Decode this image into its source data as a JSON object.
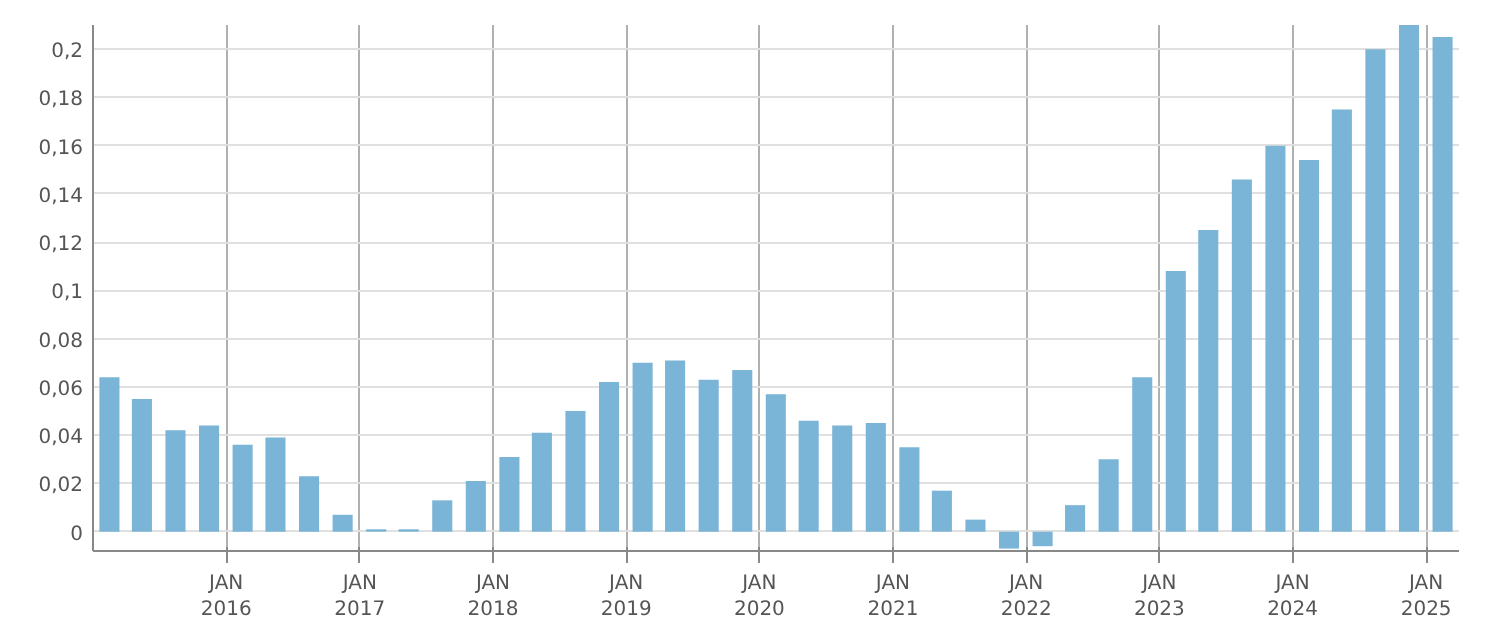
{
  "chart_data": {
    "type": "bar",
    "x": [
      "2015-02-15",
      "2015-05-15",
      "2015-08-15",
      "2015-11-15",
      "2016-02-15",
      "2016-05-15",
      "2016-08-15",
      "2016-11-15",
      "2017-02-15",
      "2017-05-15",
      "2017-08-15",
      "2017-11-15",
      "2018-02-15",
      "2018-05-15",
      "2018-08-15",
      "2018-11-15",
      "2019-02-15",
      "2019-05-15",
      "2019-08-15",
      "2019-11-15",
      "2020-02-15",
      "2020-05-15",
      "2020-08-15",
      "2020-11-15",
      "2021-02-15",
      "2021-05-15",
      "2021-08-15",
      "2021-11-15",
      "2022-02-15",
      "2022-05-15",
      "2022-08-15",
      "2022-11-15",
      "2023-02-15",
      "2023-05-15",
      "2023-08-15",
      "2023-11-15",
      "2024-02-15",
      "2024-05-15",
      "2024-08-15",
      "2024-11-15",
      "2025-02-15"
    ],
    "values": [
      0.064,
      0.055,
      0.042,
      0.044,
      0.036,
      0.039,
      0.023,
      0.007,
      0.001,
      0.001,
      0.013,
      0.021,
      0.031,
      0.041,
      0.05,
      0.062,
      0.07,
      0.071,
      0.063,
      0.067,
      0.057,
      0.046,
      0.044,
      0.045,
      0.035,
      0.017,
      0.005,
      -0.007,
      -0.006,
      0.011,
      0.03,
      0.064,
      0.108,
      0.125,
      0.146,
      0.16,
      0.154,
      0.175,
      0.2,
      0.21,
      0.205
    ],
    "color": "#7ab4d6",
    "xlim": [
      "2015-01-01",
      "2025-04-01"
    ],
    "xticks": [
      {
        "value": "2016-01-01",
        "label": "JAN\n2016"
      },
      {
        "value": "2017-01-01",
        "label": "JAN\n2017"
      },
      {
        "value": "2018-01-01",
        "label": "JAN\n2018"
      },
      {
        "value": "2019-01-01",
        "label": "JAN\n2019"
      },
      {
        "value": "2020-01-01",
        "label": "JAN\n2020"
      },
      {
        "value": "2021-01-01",
        "label": "JAN\n2021"
      },
      {
        "value": "2022-01-01",
        "label": "JAN\n2022"
      },
      {
        "value": "2023-01-01",
        "label": "JAN\n2023"
      },
      {
        "value": "2024-01-01",
        "label": "JAN\n2024"
      },
      {
        "value": "2025-01-01",
        "label": "JAN\n2025"
      }
    ],
    "ylim": [
      -0.008,
      0.21
    ],
    "yticks": [
      {
        "value": 0,
        "label": "0"
      },
      {
        "value": 0.02,
        "label": "0,02"
      },
      {
        "value": 0.04,
        "label": "0,04"
      },
      {
        "value": 0.06,
        "label": "0,06"
      },
      {
        "value": 0.08,
        "label": "0,08"
      },
      {
        "value": 0.1,
        "label": "0,1"
      },
      {
        "value": 0.12,
        "label": "0,12"
      },
      {
        "value": 0.14,
        "label": "0,14"
      },
      {
        "value": 0.16,
        "label": "0,16"
      },
      {
        "value": 0.18,
        "label": "0,18"
      },
      {
        "value": 0.2,
        "label": "0,2"
      }
    ],
    "grid": true
  }
}
